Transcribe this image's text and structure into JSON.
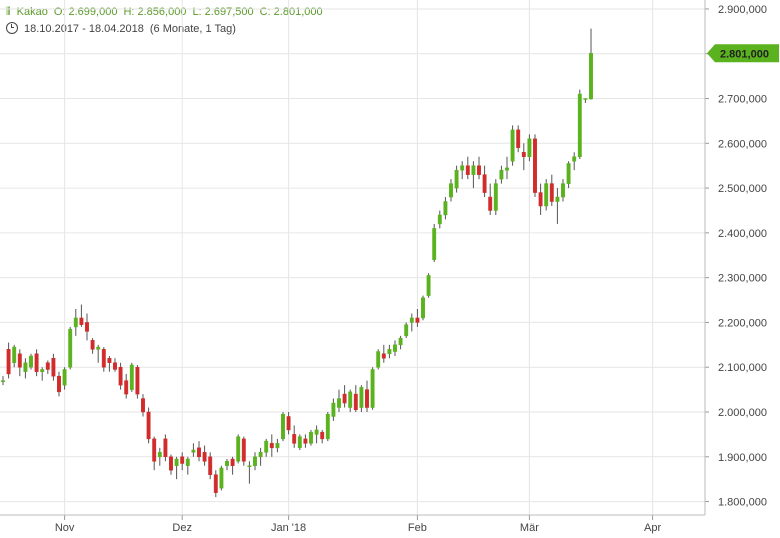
{
  "header": {
    "instrument": "Kakao",
    "open": "O: 2.699,000",
    "high": "H: 2.856,000",
    "low": "L: 2.697,500",
    "close": "C: 2.801,000",
    "range": "18.10.2017 - 18.04.2018",
    "period": "(6 Monate, 1 Tag)"
  },
  "colors": {
    "up": "#5ab31e",
    "down": "#d12c2c",
    "accent": "#5a9a28",
    "grid": "#e6e6e6"
  },
  "chart_data": {
    "type": "candlestick",
    "ylim": [
      1770000,
      2920000
    ],
    "y_ticks": [
      1800000,
      1900000,
      2000000,
      2100000,
      2200000,
      2300000,
      2400000,
      2500000,
      2600000,
      2700000,
      2800000,
      2900000
    ],
    "y_tick_labels": [
      "1.800,000",
      "1.900,000",
      "2.000,000",
      "2.100,000",
      "2.200,000",
      "2.300,000",
      "2.400,000",
      "2.500,000",
      "2.600,000",
      "2.700,000",
      "2.800,000",
      "2.900,000"
    ],
    "x_ticks": [
      {
        "label": "Nov",
        "index": 11
      },
      {
        "label": "Dez",
        "index": 32
      },
      {
        "label": "Jan '18",
        "index": 51
      },
      {
        "label": "Feb",
        "index": 74
      },
      {
        "label": "Mär",
        "index": 94
      },
      {
        "label": "Apr",
        "index": 116
      }
    ],
    "last_value_label": "2.801,000",
    "last_value": 2801000,
    "candles": [
      [
        2070000,
        2080000,
        2060000,
        2070000
      ],
      [
        2140000,
        2155000,
        2075000,
        2085000
      ],
      [
        2110000,
        2150000,
        2100000,
        2145000
      ],
      [
        2130000,
        2140000,
        2080000,
        2100000
      ],
      [
        2090000,
        2120000,
        2075000,
        2110000
      ],
      [
        2100000,
        2130000,
        2095000,
        2125000
      ],
      [
        2130000,
        2140000,
        2080000,
        2090000
      ],
      [
        2090000,
        2100000,
        2070000,
        2095000
      ],
      [
        2110000,
        2115000,
        2085000,
        2095000
      ],
      [
        2120000,
        2130000,
        2070000,
        2080000
      ],
      [
        2080000,
        2090000,
        2035000,
        2045000
      ],
      [
        2060000,
        2100000,
        2050000,
        2095000
      ],
      [
        2100000,
        2190000,
        2095000,
        2185000
      ],
      [
        2190000,
        2230000,
        2170000,
        2210000
      ],
      [
        2210000,
        2240000,
        2190000,
        2195000
      ],
      [
        2200000,
        2220000,
        2160000,
        2180000
      ],
      [
        2160000,
        2165000,
        2130000,
        2140000
      ],
      [
        2140000,
        2150000,
        2110000,
        2145000
      ],
      [
        2140000,
        2145000,
        2090000,
        2100000
      ],
      [
        2120000,
        2125000,
        2090000,
        2110000
      ],
      [
        2110000,
        2120000,
        2090000,
        2095000
      ],
      [
        2100000,
        2110000,
        2050000,
        2060000
      ],
      [
        2070000,
        2085000,
        2030000,
        2040000
      ],
      [
        2050000,
        2110000,
        2045000,
        2105000
      ],
      [
        2100000,
        2105000,
        2030000,
        2040000
      ],
      [
        2030000,
        2040000,
        1990000,
        2000000
      ],
      [
        2000000,
        2010000,
        1930000,
        1940000
      ],
      [
        1940000,
        1945000,
        1870000,
        1890000
      ],
      [
        1900000,
        1920000,
        1880000,
        1910000
      ],
      [
        1940000,
        1950000,
        1890000,
        1900000
      ],
      [
        1900000,
        1905000,
        1860000,
        1870000
      ],
      [
        1880000,
        1900000,
        1850000,
        1895000
      ],
      [
        1900000,
        1910000,
        1870000,
        1885000
      ],
      [
        1880000,
        1900000,
        1860000,
        1895000
      ],
      [
        1910000,
        1930000,
        1900000,
        1915000
      ],
      [
        1920000,
        1935000,
        1890000,
        1900000
      ],
      [
        1910000,
        1925000,
        1880000,
        1890000
      ],
      [
        1900000,
        1910000,
        1850000,
        1860000
      ],
      [
        1860000,
        1870000,
        1810000,
        1820000
      ],
      [
        1830000,
        1880000,
        1825000,
        1875000
      ],
      [
        1880000,
        1895000,
        1870000,
        1890000
      ],
      [
        1895000,
        1900000,
        1860000,
        1880000
      ],
      [
        1890000,
        1950000,
        1885000,
        1945000
      ],
      [
        1940000,
        1945000,
        1880000,
        1890000
      ],
      [
        1880000,
        1890000,
        1840000,
        1880000
      ],
      [
        1880000,
        1910000,
        1870000,
        1900000
      ],
      [
        1900000,
        1920000,
        1880000,
        1910000
      ],
      [
        1910000,
        1940000,
        1900000,
        1935000
      ],
      [
        1930000,
        1950000,
        1900000,
        1920000
      ],
      [
        1920000,
        1940000,
        1910000,
        1930000
      ],
      [
        1940000,
        2000000,
        1935000,
        1995000
      ],
      [
        1990000,
        2000000,
        1950000,
        1960000
      ],
      [
        1950000,
        1970000,
        1920000,
        1930000
      ],
      [
        1920000,
        1950000,
        1915000,
        1945000
      ],
      [
        1940000,
        1950000,
        1920000,
        1930000
      ],
      [
        1930000,
        1960000,
        1925000,
        1955000
      ],
      [
        1950000,
        1970000,
        1930000,
        1960000
      ],
      [
        1955000,
        1960000,
        1930000,
        1940000
      ],
      [
        1940000,
        2000000,
        1935000,
        1995000
      ],
      [
        1990000,
        2030000,
        1980000,
        2020000
      ],
      [
        2010000,
        2050000,
        2000000,
        2030000
      ],
      [
        2040000,
        2060000,
        2010000,
        2020000
      ],
      [
        2010000,
        2050000,
        2000000,
        2045000
      ],
      [
        2040000,
        2060000,
        2000000,
        2005000
      ],
      [
        2010000,
        2060000,
        2000000,
        2055000
      ],
      [
        2050000,
        2070000,
        2000000,
        2010000
      ],
      [
        2010000,
        2100000,
        2005000,
        2095000
      ],
      [
        2100000,
        2140000,
        2095000,
        2135000
      ],
      [
        2130000,
        2150000,
        2110000,
        2120000
      ],
      [
        2130000,
        2150000,
        2120000,
        2140000
      ],
      [
        2135000,
        2160000,
        2125000,
        2150000
      ],
      [
        2150000,
        2170000,
        2140000,
        2165000
      ],
      [
        2170000,
        2200000,
        2165000,
        2195000
      ],
      [
        2200000,
        2220000,
        2180000,
        2210000
      ],
      [
        2210000,
        2230000,
        2190000,
        2200000
      ],
      [
        2210000,
        2260000,
        2205000,
        2255000
      ],
      [
        2260000,
        2310000,
        2255000,
        2305000
      ],
      [
        2340000,
        2420000,
        2335000,
        2410000
      ],
      [
        2420000,
        2450000,
        2410000,
        2440000
      ],
      [
        2440000,
        2480000,
        2430000,
        2470000
      ],
      [
        2480000,
        2520000,
        2470000,
        2510000
      ],
      [
        2500000,
        2550000,
        2490000,
        2540000
      ],
      [
        2540000,
        2560000,
        2520000,
        2550000
      ],
      [
        2550000,
        2570000,
        2520000,
        2530000
      ],
      [
        2530000,
        2560000,
        2500000,
        2550000
      ],
      [
        2550000,
        2570000,
        2520000,
        2530000
      ],
      [
        2530000,
        2550000,
        2480000,
        2490000
      ],
      [
        2480000,
        2510000,
        2440000,
        2450000
      ],
      [
        2450000,
        2520000,
        2440000,
        2510000
      ],
      [
        2520000,
        2550000,
        2510000,
        2540000
      ],
      [
        2540000,
        2570000,
        2520000,
        2545000
      ],
      [
        2560000,
        2640000,
        2550000,
        2630000
      ],
      [
        2630000,
        2640000,
        2580000,
        2590000
      ],
      [
        2580000,
        2600000,
        2540000,
        2570000
      ],
      [
        2570000,
        2620000,
        2560000,
        2610000
      ],
      [
        2610000,
        2620000,
        2480000,
        2490000
      ],
      [
        2490000,
        2510000,
        2440000,
        2460000
      ],
      [
        2460000,
        2520000,
        2450000,
        2510000
      ],
      [
        2510000,
        2530000,
        2460000,
        2470000
      ],
      [
        2470000,
        2500000,
        2420000,
        2480000
      ],
      [
        2480000,
        2520000,
        2470000,
        2510000
      ],
      [
        2510000,
        2560000,
        2500000,
        2555000
      ],
      [
        2560000,
        2580000,
        2540000,
        2570000
      ],
      [
        2570000,
        2720000,
        2565000,
        2710000
      ],
      [
        2699000,
        2700000,
        2690000,
        2700000
      ],
      [
        2699000,
        2856000,
        2697500,
        2801000
      ]
    ]
  }
}
